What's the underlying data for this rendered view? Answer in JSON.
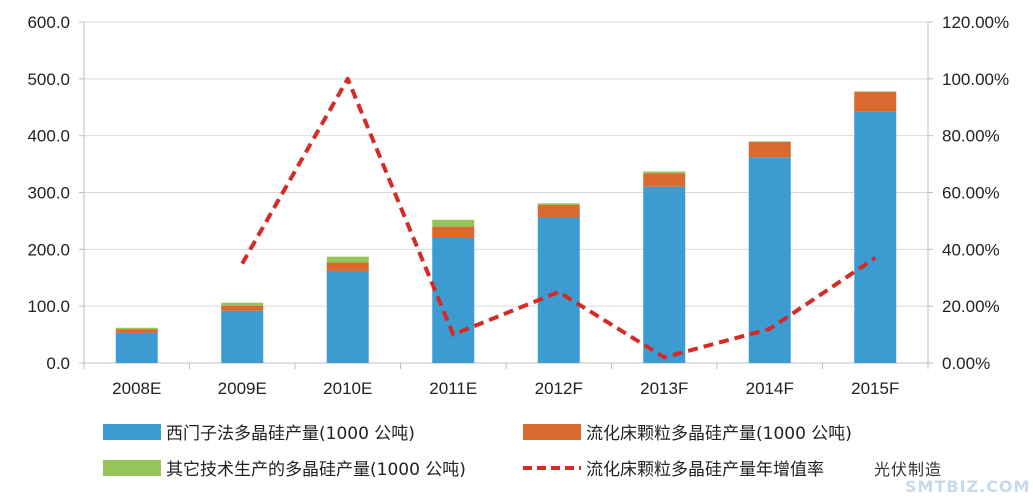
{
  "chart_data": {
    "type": "bar",
    "stacked": true,
    "categories": [
      "2008E",
      "2009E",
      "2010E",
      "2011E",
      "2012F",
      "2013F",
      "2014F",
      "2015F"
    ],
    "series": [
      {
        "name": "西门子法多晶硅产量(1000 公吨)",
        "kind": "bar",
        "axis": "left",
        "color": "#3c9bd1",
        "values": [
          53,
          92,
          162,
          220,
          256,
          310,
          362,
          442
        ]
      },
      {
        "name": "流化床颗粒多晶硅产量(1000 公吨)",
        "kind": "bar",
        "axis": "left",
        "color": "#d9692f",
        "values": [
          6,
          9,
          15,
          20,
          22,
          24,
          27,
          35
        ]
      },
      {
        "name": "其它技术生产的多晶硅产量(1000 公吨)",
        "kind": "bar",
        "axis": "left",
        "color": "#94c45a",
        "values": [
          3,
          5,
          10,
          12,
          3,
          3,
          1,
          1
        ]
      },
      {
        "name": "流化床颗粒多晶硅产量年增值率",
        "kind": "line",
        "axis": "right",
        "color": "#d62a27",
        "dashed": true,
        "values": [
          null,
          0.35,
          1.0,
          0.1,
          0.25,
          0.02,
          0.12,
          0.37
        ]
      }
    ],
    "y_left": {
      "min": 0,
      "max": 600,
      "step": 100,
      "tick_labels": [
        "0.0",
        "100.0",
        "200.0",
        "300.0",
        "400.0",
        "500.0",
        "600.0"
      ]
    },
    "y_right": {
      "min": 0,
      "max": 1.2,
      "step": 0.2,
      "tick_labels": [
        "0.00%",
        "20.00%",
        "40.00%",
        "60.00%",
        "80.00%",
        "100.00%",
        "120.00%"
      ]
    },
    "grid": true,
    "legend_position": "bottom"
  },
  "watermark": {
    "overlay_text": "光伏制造",
    "site_text": "SMTBIZ.COM"
  }
}
